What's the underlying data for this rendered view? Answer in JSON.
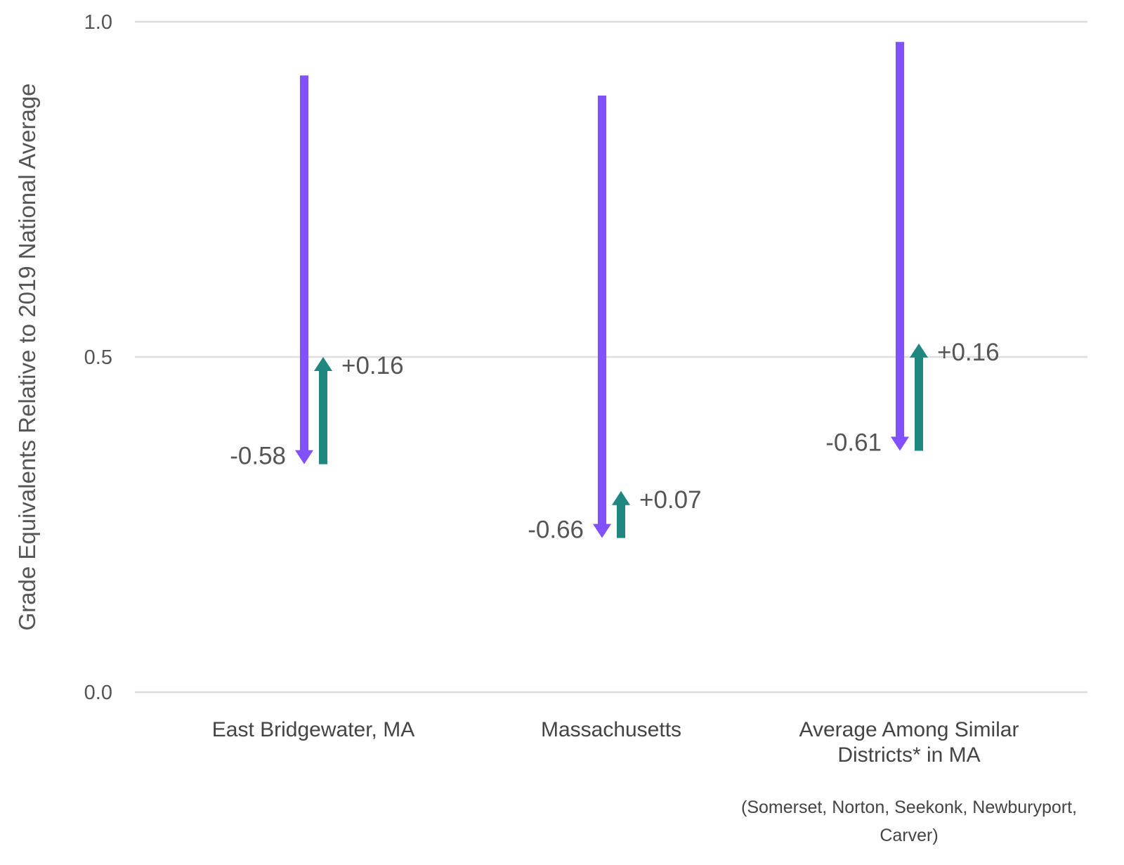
{
  "chart_data": {
    "type": "arrow-range",
    "ylabel": "Grade Equivalents Relative to 2019 National Average",
    "ylim": [
      0.0,
      1.0
    ],
    "yticks": [
      "0.0",
      "0.5",
      "1.0"
    ],
    "grid": true,
    "categories": [
      {
        "label_lines": [
          "East Bridgewater, MA"
        ],
        "note_lines": []
      },
      {
        "label_lines": [
          "Massachusetts"
        ],
        "note_lines": []
      },
      {
        "label_lines": [
          "Average Among Similar",
          "Districts* in MA"
        ],
        "note_lines": [
          "(Somerset, Norton, Seekonk, Newburyport,",
          "Carver)"
        ]
      }
    ],
    "series": [
      {
        "color": "#8150ff",
        "direction": "down",
        "start": [
          0.92,
          0.89,
          0.97
        ],
        "end": [
          0.34,
          0.23,
          0.36
        ],
        "labels": [
          "-0.58",
          "-0.66",
          "-0.61"
        ]
      },
      {
        "color": "#1f8680",
        "direction": "up",
        "start": [
          0.34,
          0.23,
          0.36
        ],
        "end": [
          0.5,
          0.3,
          0.52
        ],
        "labels": [
          "+0.16",
          "+0.07",
          "+0.16"
        ]
      }
    ]
  }
}
